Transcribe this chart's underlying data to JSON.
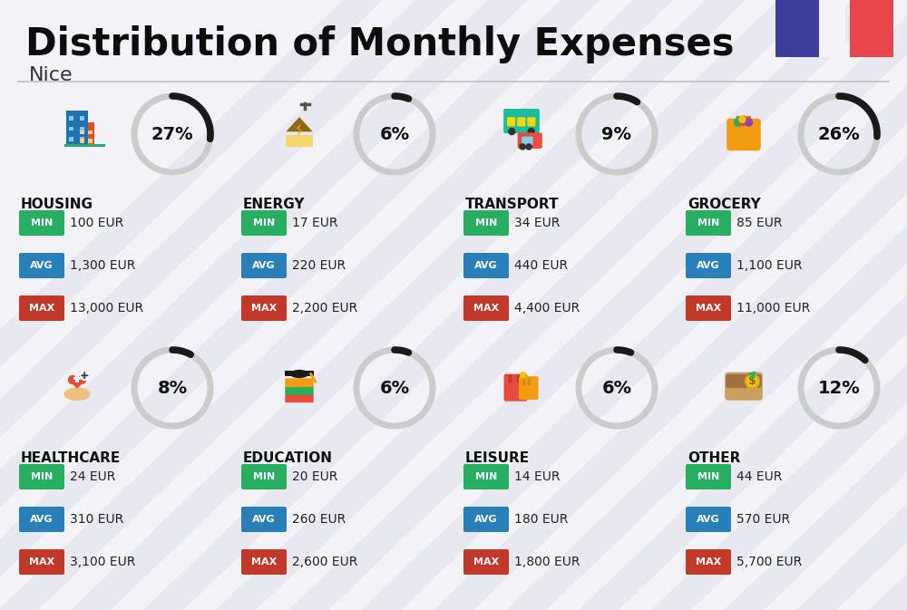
{
  "title": "Distribution of Monthly Expenses",
  "subtitle": "Nice",
  "background_color": "#f2f2f7",
  "categories": [
    {
      "name": "HOUSING",
      "pct": 27,
      "icon": "housing",
      "min_val": "100 EUR",
      "avg_val": "1,300 EUR",
      "max_val": "13,000 EUR",
      "row": 0,
      "col": 0
    },
    {
      "name": "ENERGY",
      "pct": 6,
      "icon": "energy",
      "min_val": "17 EUR",
      "avg_val": "220 EUR",
      "max_val": "2,200 EUR",
      "row": 0,
      "col": 1
    },
    {
      "name": "TRANSPORT",
      "pct": 9,
      "icon": "transport",
      "min_val": "34 EUR",
      "avg_val": "440 EUR",
      "max_val": "4,400 EUR",
      "row": 0,
      "col": 2
    },
    {
      "name": "GROCERY",
      "pct": 26,
      "icon": "grocery",
      "min_val": "85 EUR",
      "avg_val": "1,100 EUR",
      "max_val": "11,000 EUR",
      "row": 0,
      "col": 3
    },
    {
      "name": "HEALTHCARE",
      "pct": 8,
      "icon": "healthcare",
      "min_val": "24 EUR",
      "avg_val": "310 EUR",
      "max_val": "3,100 EUR",
      "row": 1,
      "col": 0
    },
    {
      "name": "EDUCATION",
      "pct": 6,
      "icon": "education",
      "min_val": "20 EUR",
      "avg_val": "260 EUR",
      "max_val": "2,600 EUR",
      "row": 1,
      "col": 1
    },
    {
      "name": "LEISURE",
      "pct": 6,
      "icon": "leisure",
      "min_val": "14 EUR",
      "avg_val": "180 EUR",
      "max_val": "1,800 EUR",
      "row": 1,
      "col": 2
    },
    {
      "name": "OTHER",
      "pct": 12,
      "icon": "other",
      "min_val": "44 EUR",
      "avg_val": "570 EUR",
      "max_val": "5,700 EUR",
      "row": 1,
      "col": 3
    }
  ],
  "min_color": "#27ae60",
  "avg_color": "#2980b9",
  "max_color": "#c0392b",
  "flag_blue": "#3d3d9e",
  "flag_red": "#e8454d",
  "arc_dark": "#1a1a1a",
  "arc_light": "#cccccc"
}
